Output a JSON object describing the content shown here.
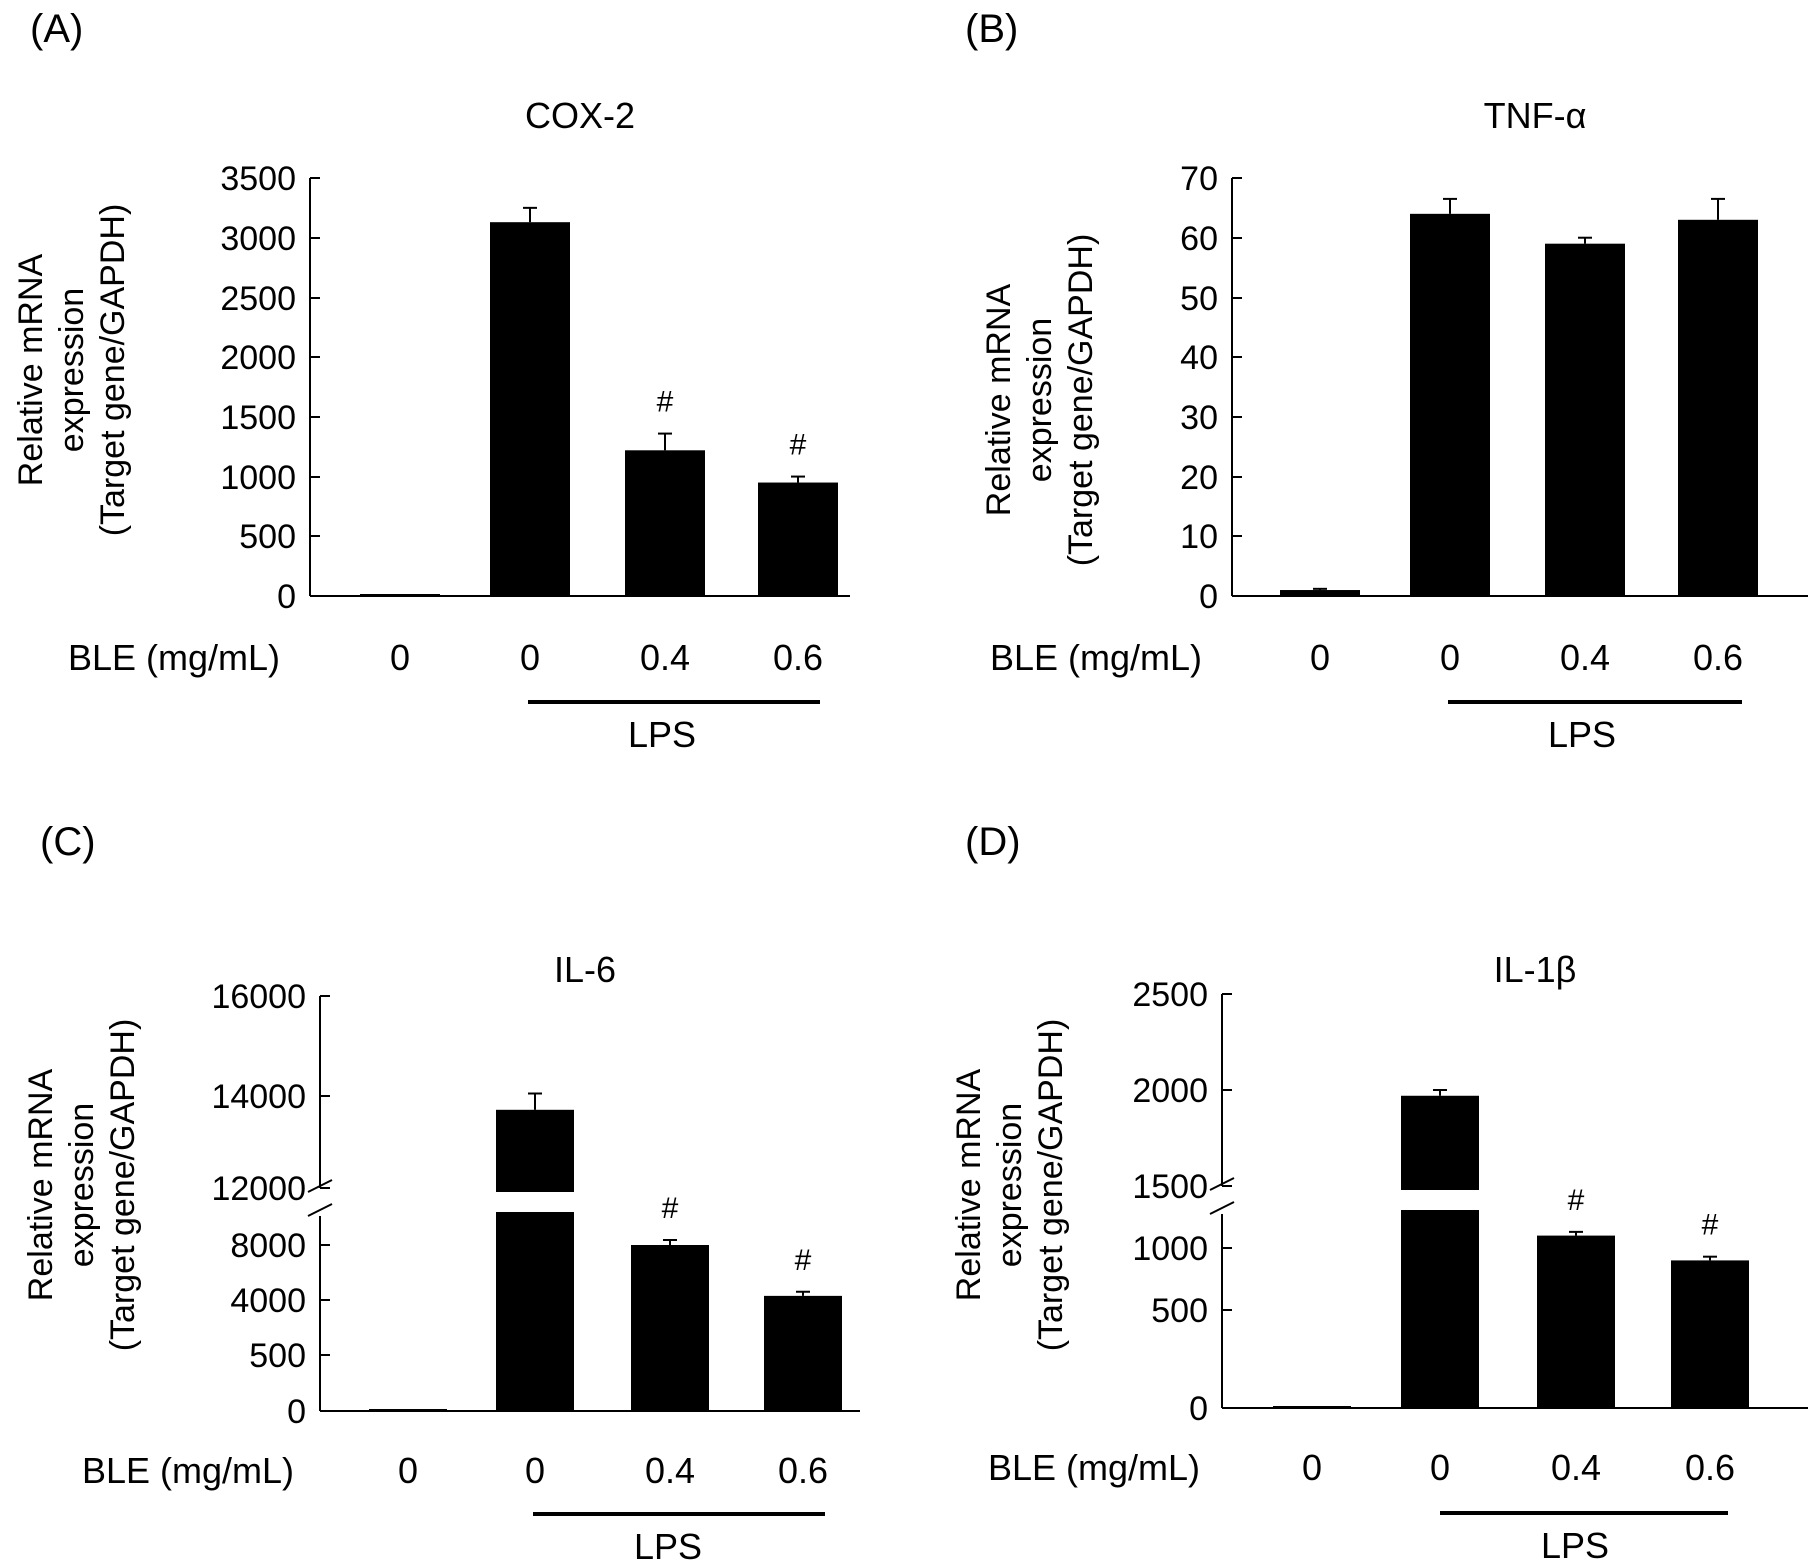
{
  "figure": {
    "background": "#ffffff",
    "bar_color": "#000000"
  },
  "chart_data": [
    {
      "type": "bar",
      "panel": "(A)",
      "title": "COX-2",
      "ylabel": [
        "Relative mRNA",
        "expression",
        "(Target gene/GAPDH)"
      ],
      "xlabel": "BLE (mg/mL)",
      "categories": [
        "0",
        "0",
        "0.4",
        "0.6"
      ],
      "values": [
        1,
        3130,
        1220,
        950
      ],
      "errors": [
        0,
        120,
        140,
        50
      ],
      "significance": [
        "",
        "",
        "#",
        "#"
      ],
      "group_label": "LPS",
      "yticks": [
        "0",
        "500",
        "1000",
        "1500",
        "2000",
        "2500",
        "3000",
        "3500"
      ],
      "ylim": [
        0,
        3500
      ]
    },
    {
      "type": "bar",
      "panel": "(B)",
      "title": "TNF-α",
      "ylabel": [
        "Relative mRNA",
        "expression",
        "(Target gene/GAPDH)"
      ],
      "xlabel": "BLE (mg/mL)",
      "categories": [
        "0",
        "0",
        "0.4",
        "0.6"
      ],
      "values": [
        1,
        64,
        59,
        63
      ],
      "errors": [
        0.2,
        2.5,
        1,
        3.5
      ],
      "significance": [
        "",
        "",
        "",
        ""
      ],
      "group_label": "LPS",
      "yticks": [
        "0",
        "10",
        "20",
        "30",
        "40",
        "50",
        "60",
        "70"
      ],
      "ylim": [
        0,
        70
      ]
    },
    {
      "type": "bar",
      "panel": "(C)",
      "title": "IL-6",
      "ylabel": [
        "Relative mRNA",
        "expression",
        "(Target gene/GAPDH)"
      ],
      "xlabel": "BLE (mg/mL)",
      "categories": [
        "0",
        "0",
        "0.4",
        "0.6"
      ],
      "values": [
        1,
        13700,
        8000,
        4300
      ],
      "errors": [
        0,
        350,
        350,
        300
      ],
      "significance": [
        "",
        "",
        "#",
        "#"
      ],
      "group_label": "LPS",
      "yticks": [
        "0",
        "500",
        "4000",
        "8000",
        "12000",
        "14000",
        "16000"
      ],
      "broken_axis": true
    },
    {
      "type": "bar",
      "panel": "(D)",
      "title": "IL-1β",
      "ylabel": [
        "Relative mRNA",
        "expression",
        "(Target gene/GAPDH)"
      ],
      "xlabel": "BLE (mg/mL)",
      "categories": [
        "0",
        "0",
        "0.4",
        "0.6"
      ],
      "values": [
        1,
        1970,
        1100,
        900
      ],
      "errors": [
        0,
        30,
        30,
        30
      ],
      "significance": [
        "",
        "",
        "#",
        "#"
      ],
      "group_label": "LPS",
      "yticks": [
        "0",
        "500",
        "1000",
        "1500",
        "2000",
        "2500"
      ],
      "broken_axis": true
    }
  ]
}
